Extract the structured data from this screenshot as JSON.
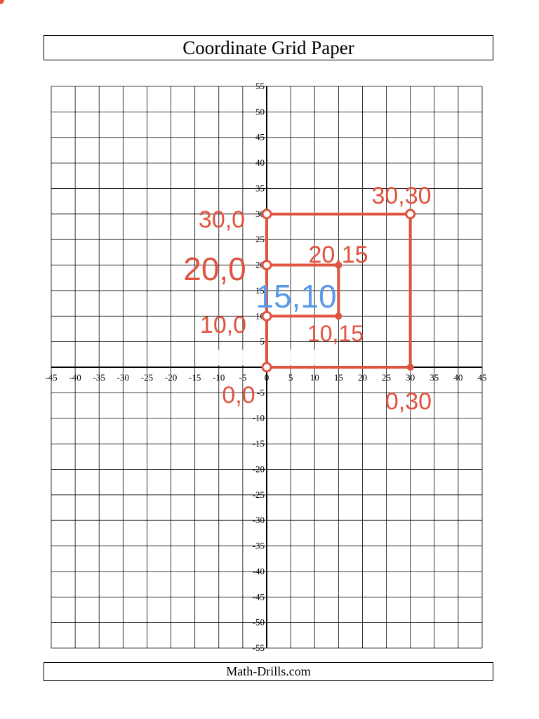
{
  "header": {
    "title": "Coordinate Grid Paper"
  },
  "footer": {
    "text": "Math-Drills.com"
  },
  "grid": {
    "x_range": [
      -45,
      45
    ],
    "y_range": [
      -55,
      55
    ],
    "x_tick_labels": [
      "-45",
      "-40",
      "-35",
      "-30",
      "-25",
      "-20",
      "-15",
      "-10",
      "-5",
      "0",
      "5",
      "10",
      "15",
      "20",
      "25",
      "30",
      "35",
      "40",
      "45"
    ],
    "y_tick_labels": [
      "55",
      "50",
      "45",
      "40",
      "35",
      "30",
      "25",
      "20",
      "15",
      "10",
      "5",
      "-5",
      "-10",
      "-15",
      "-20",
      "-25",
      "-30",
      "-35",
      "-40",
      "-45",
      "-50",
      "-55"
    ]
  },
  "annotations": {
    "ink_color": "#e0533f",
    "blue_color": "#5a9ae8",
    "shapes": [
      {
        "name": "outer-rectangle",
        "points": [
          [
            0,
            0
          ],
          [
            30,
            0
          ],
          [
            30,
            30
          ],
          [
            0,
            30
          ]
        ]
      },
      {
        "name": "inner-rectangle",
        "points": [
          [
            0,
            10
          ],
          [
            15,
            10
          ],
          [
            15,
            20
          ],
          [
            0,
            20
          ]
        ]
      }
    ],
    "points": [
      {
        "name": "point-0-0",
        "x": 0,
        "y": 0,
        "style": "open"
      },
      {
        "name": "point-30-0",
        "x": 30,
        "y": 0,
        "style": "filled"
      },
      {
        "name": "point-30-30",
        "x": 30,
        "y": 30,
        "style": "open"
      },
      {
        "name": "point-0-30",
        "x": 0,
        "y": 30,
        "style": "open"
      },
      {
        "name": "point-0-20",
        "x": 0,
        "y": 20,
        "style": "open"
      },
      {
        "name": "point-15-20",
        "x": 15,
        "y": 20,
        "style": "filled"
      },
      {
        "name": "point-15-10",
        "x": 15,
        "y": 10,
        "style": "filled"
      },
      {
        "name": "point-0-10",
        "x": 0,
        "y": 10,
        "style": "open"
      }
    ],
    "labels": [
      {
        "name": "label-0-0",
        "text": "0,0",
        "color": "red"
      },
      {
        "name": "label-0-30",
        "text": "0,30",
        "color": "red"
      },
      {
        "name": "label-30-30",
        "text": "30,30",
        "color": "red"
      },
      {
        "name": "label-30-0",
        "text": "30,0",
        "color": "red"
      },
      {
        "name": "label-20-0",
        "text": "20,0",
        "color": "red"
      },
      {
        "name": "label-20-15",
        "text": "20,15",
        "color": "red"
      },
      {
        "name": "label-15-10",
        "text": "15,10",
        "color": "blue"
      },
      {
        "name": "label-10-0",
        "text": "10,0",
        "color": "red"
      },
      {
        "name": "label-10-15",
        "text": "10,15",
        "color": "red"
      }
    ]
  }
}
